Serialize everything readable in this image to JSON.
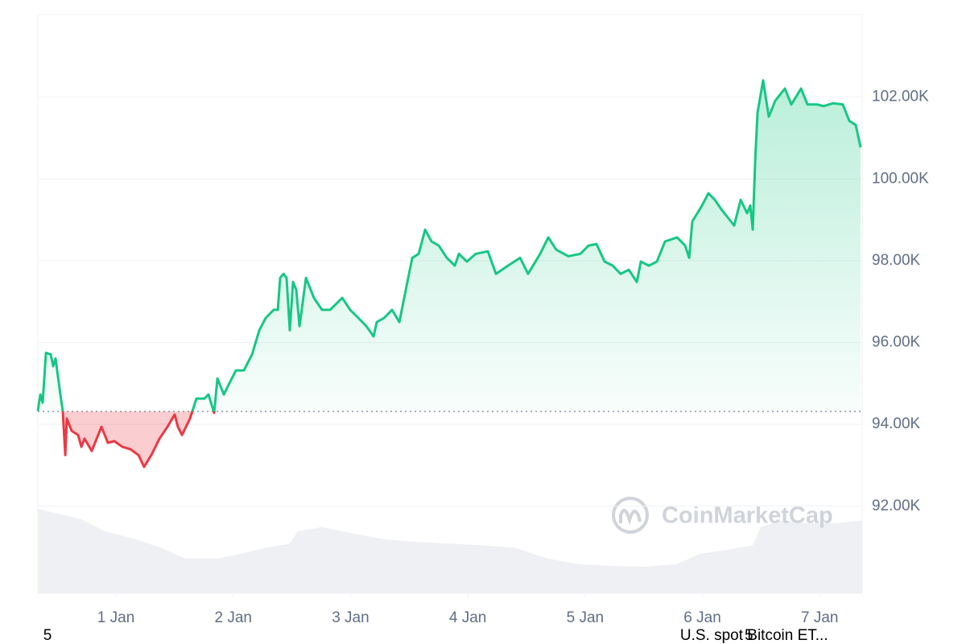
{
  "chart_data": {
    "type": "line",
    "x": [
      0.334,
      0.355,
      0.375,
      0.403,
      0.444,
      0.465,
      0.485,
      0.526,
      0.547,
      0.568,
      0.581,
      0.623,
      0.677,
      0.705,
      0.732,
      0.794,
      0.876,
      0.931,
      0.986,
      1.055,
      1.124,
      1.192,
      1.24,
      1.302,
      1.371,
      1.439,
      1.501,
      1.528,
      1.563,
      1.631,
      1.686,
      1.755,
      1.789,
      1.837,
      1.865,
      1.92,
      1.954,
      2.023,
      2.091,
      2.16,
      2.222,
      2.277,
      2.345,
      2.38,
      2.4,
      2.428,
      2.455,
      2.482,
      2.51,
      2.537,
      2.565,
      2.62,
      2.688,
      2.757,
      2.826,
      2.929,
      2.997,
      3.066,
      3.135,
      3.196,
      3.224,
      3.286,
      3.354,
      3.416,
      3.471,
      3.526,
      3.581,
      3.636,
      3.691,
      3.752,
      3.821,
      3.889,
      3.924,
      3.992,
      4.068,
      4.171,
      4.24,
      4.343,
      4.446,
      4.514,
      4.617,
      4.686,
      4.754,
      4.857,
      4.96,
      5.029,
      5.097,
      5.166,
      5.235,
      5.303,
      5.372,
      5.441,
      5.475,
      5.544,
      5.612,
      5.681,
      5.784,
      5.853,
      5.887,
      5.914,
      5.997,
      6.051,
      6.106,
      6.161,
      6.216,
      6.271,
      6.326,
      6.381,
      6.408,
      6.429,
      6.45,
      6.47,
      6.518,
      6.566,
      6.621,
      6.703,
      6.758,
      6.841,
      6.896,
      6.978,
      7.033,
      7.115,
      7.197,
      7.252,
      7.307,
      7.349
    ],
    "values": [
      94330,
      94730,
      94530,
      95750,
      95710,
      95420,
      95610,
      94730,
      94330,
      93250,
      94140,
      93840,
      93740,
      93450,
      93650,
      93350,
      93940,
      93550,
      93590,
      93450,
      93390,
      93250,
      92960,
      93250,
      93650,
      93940,
      94240,
      93940,
      93740,
      94140,
      94630,
      94630,
      94730,
      94280,
      95120,
      94730,
      94930,
      95320,
      95320,
      95710,
      96300,
      96600,
      96800,
      96800,
      97580,
      97680,
      97580,
      96300,
      97480,
      97290,
      96400,
      97580,
      97090,
      96800,
      96800,
      97090,
      96800,
      96600,
      96400,
      96150,
      96500,
      96600,
      96800,
      96500,
      97290,
      98070,
      98170,
      98760,
      98470,
      98370,
      98070,
      97880,
      98170,
      97980,
      98170,
      98230,
      97680,
      97880,
      98070,
      97680,
      98170,
      98570,
      98270,
      98110,
      98170,
      98370,
      98410,
      97980,
      97880,
      97680,
      97780,
      97480,
      97980,
      97880,
      97980,
      98470,
      98570,
      98370,
      98070,
      98960,
      99350,
      99650,
      99490,
      99260,
      99060,
      98860,
      99490,
      99160,
      99350,
      98760,
      100440,
      101620,
      102410,
      101520,
      101910,
      102210,
      101820,
      102210,
      101820,
      101820,
      101780,
      101850,
      101820,
      101420,
      101320,
      100770
    ],
    "color": "#16c784",
    "below_color": "#ea3943",
    "baseline": 94315,
    "volume": {
      "x": [
        0.334,
        0.698,
        0.904,
        1.178,
        1.384,
        1.59,
        1.865,
        2.071,
        2.277,
        2.482,
        2.551,
        2.757,
        3.032,
        3.306,
        3.581,
        3.855,
        4.13,
        4.404,
        4.679,
        4.953,
        5.228,
        5.502,
        5.777,
        5.983,
        6.189,
        6.429,
        6.498,
        6.669,
        6.875,
        7.15,
        7.362
      ],
      "values": [
        102,
        90,
        75,
        65,
        55,
        42,
        42,
        48,
        55,
        60,
        75,
        80,
        72,
        65,
        62,
        60,
        58,
        55,
        42,
        35,
        33,
        32,
        35,
        48,
        52,
        58,
        80,
        88,
        85,
        85,
        88
      ],
      "color": "#eef0f3",
      "y2lim": [
        0,
        700
      ]
    },
    "xlim": [
      0.334,
      7.362
    ],
    "xticks": [
      {
        "value": 1,
        "label": "1 Jan"
      },
      {
        "value": 2,
        "label": "2 Jan"
      },
      {
        "value": 3,
        "label": "3 Jan"
      },
      {
        "value": 4,
        "label": "4 Jan"
      },
      {
        "value": 5,
        "label": "5 Jan"
      },
      {
        "value": 6,
        "label": "6 Jan"
      },
      {
        "value": 7,
        "label": "7 Jan"
      }
    ],
    "ylim": [
      89870,
      104020
    ],
    "yticks": [
      {
        "value": 92000,
        "label": "92.00K"
      },
      {
        "value": 94000,
        "label": "94.00K"
      },
      {
        "value": 96000,
        "label": "96.00K"
      },
      {
        "value": 98000,
        "label": "98.00K"
      },
      {
        "value": 100000,
        "label": "100.00K"
      },
      {
        "value": 102000,
        "label": "102.00K"
      }
    ],
    "grid": true,
    "annotations": [
      {
        "text": "5",
        "x": 0.38
      },
      {
        "text": "U.S. spot Bitcoin ET...",
        "x": 5.81
      },
      {
        "text": "5",
        "x": 6.36
      }
    ],
    "watermark": "CoinMarketCap"
  }
}
